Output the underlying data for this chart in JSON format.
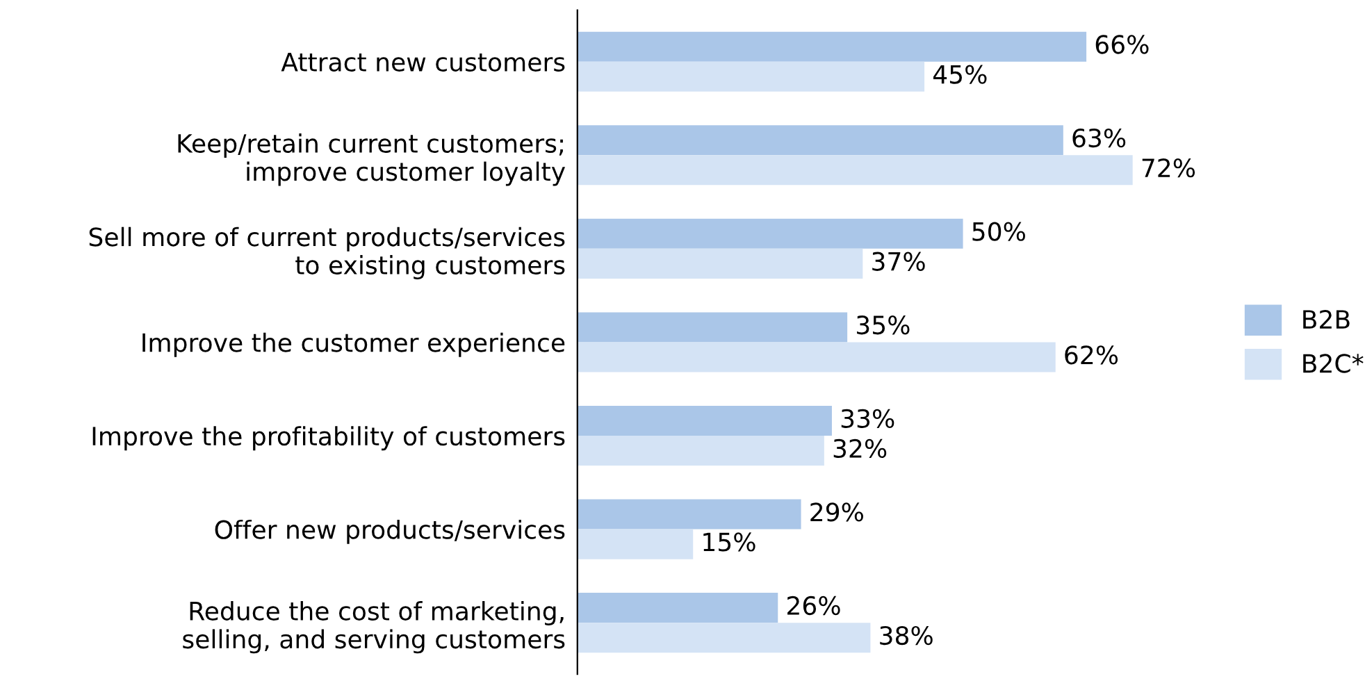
{
  "chart_data": {
    "type": "bar",
    "orientation": "horizontal",
    "categories": [
      "Attract new customers",
      "Keep/retain current customers;\nimprove customer loyalty",
      "Sell more of current products/services\nto existing customers",
      "Improve the customer experience",
      "Improve the profitability of customers",
      "Offer new products/services",
      "Reduce the cost of marketing,\nselling, and serving customers"
    ],
    "series": [
      {
        "name": "B2B",
        "color": "#aac6e8",
        "values": [
          66,
          63,
          50,
          35,
          33,
          29,
          26
        ],
        "value_labels": [
          "66%",
          "63%",
          "50%",
          "35%",
          "33%",
          "29%",
          "26%"
        ]
      },
      {
        "name": "B2C*",
        "color": "#d4e3f5",
        "values": [
          45,
          72,
          37,
          62,
          32,
          15,
          38
        ],
        "value_labels": [
          "45%",
          "72%",
          "37%",
          "62%",
          "32%",
          "15%",
          "38%"
        ]
      }
    ],
    "legend": "right",
    "grid": false
  }
}
